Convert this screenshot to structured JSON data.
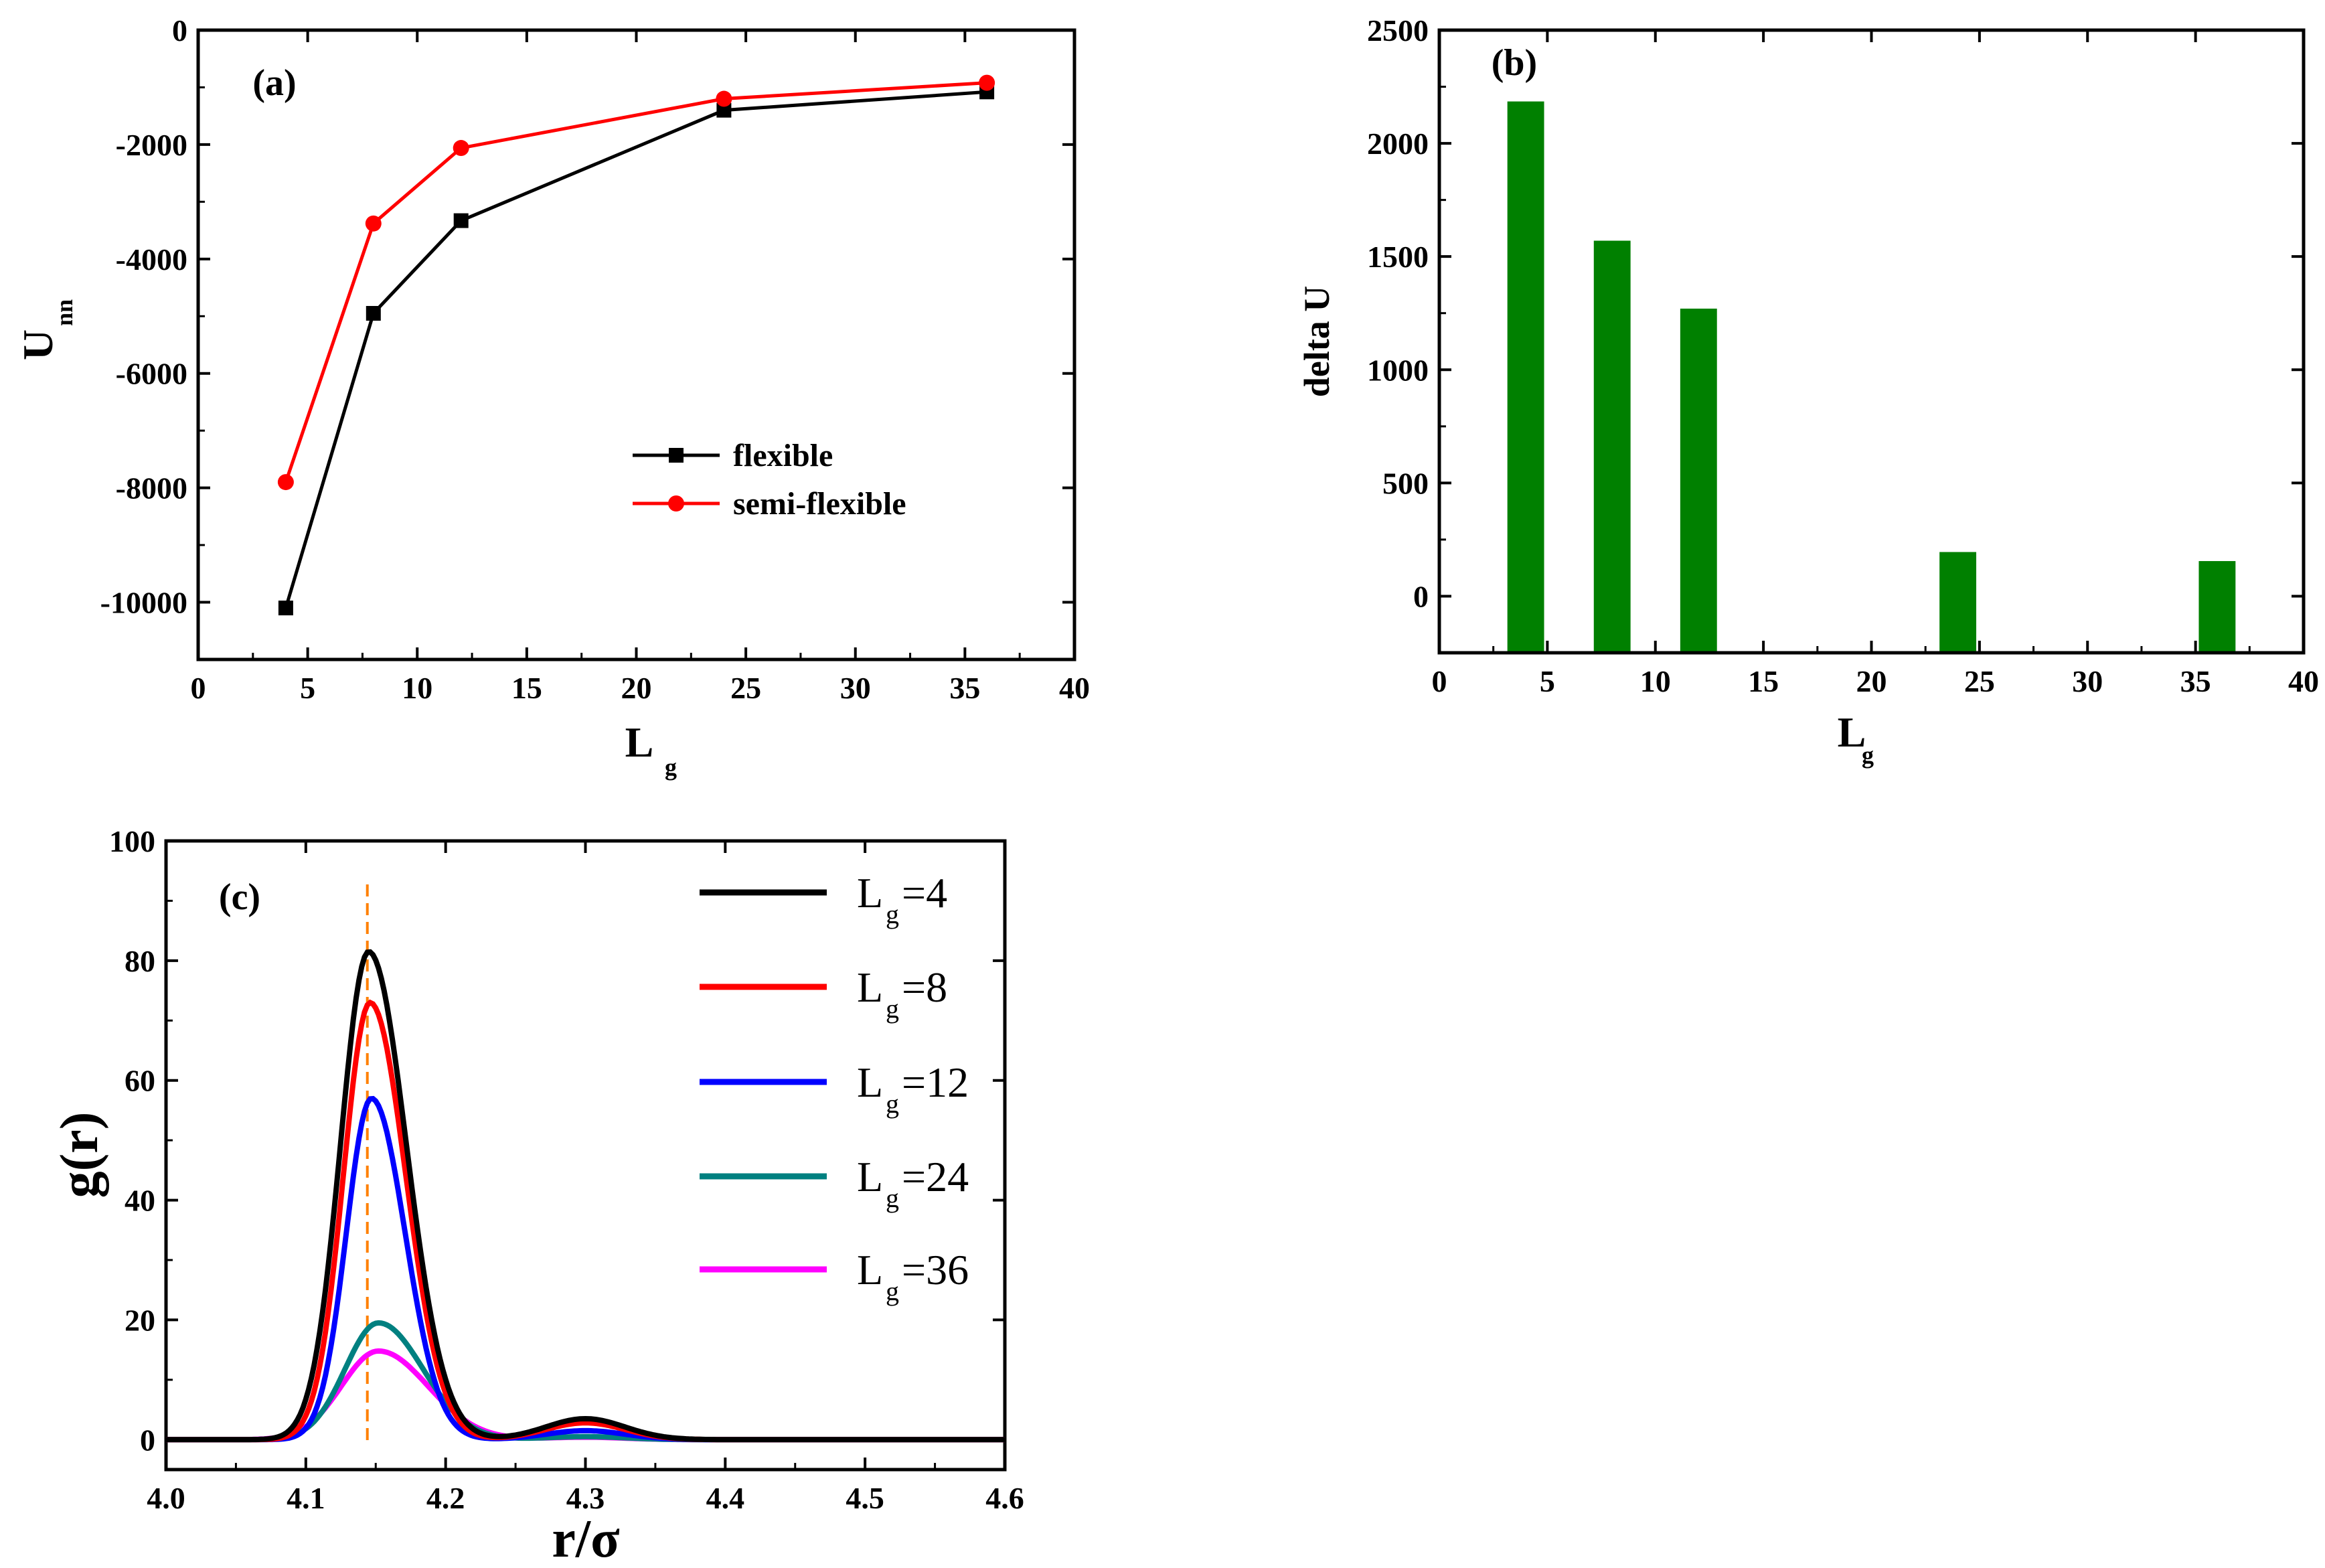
{
  "chart_data": [
    {
      "id": "a",
      "type": "line",
      "panel_label": "(a)",
      "xlabel": "L",
      "xlabel_sub": "g",
      "ylabel": "U",
      "ylabel_sub": "nn",
      "xlim": [
        0,
        40
      ],
      "ylim": [
        -11000,
        0
      ],
      "xticks": [
        0,
        5,
        10,
        15,
        20,
        25,
        30,
        35,
        40
      ],
      "yticks": [
        0,
        -2000,
        -4000,
        -6000,
        -8000,
        -10000
      ],
      "x": [
        4,
        8,
        12,
        24,
        36
      ],
      "series": [
        {
          "name": "flexible",
          "color": "#000000",
          "marker": "square",
          "values": [
            -10100,
            -4950,
            -3330,
            -1400,
            -1080
          ]
        },
        {
          "name": "semi-flexible",
          "color": "#ff0000",
          "marker": "circle",
          "values": [
            -7900,
            -3380,
            -2060,
            -1200,
            -920
          ]
        }
      ],
      "legend_position": "center-right"
    },
    {
      "id": "b",
      "type": "bar",
      "panel_label": "(b)",
      "xlabel": "L",
      "xlabel_sub": "g",
      "ylabel": "delta U",
      "xlim": [
        0,
        40
      ],
      "ylim": [
        -250,
        2500
      ],
      "xticks": [
        0,
        5,
        10,
        15,
        20,
        25,
        30,
        35,
        40
      ],
      "yticks": [
        0,
        500,
        1000,
        1500,
        2000,
        2500
      ],
      "categories": [
        4,
        8,
        12,
        24,
        36
      ],
      "values": [
        2185,
        1570,
        1270,
        195,
        155
      ],
      "bar_color": "#008000"
    },
    {
      "id": "c",
      "type": "line",
      "panel_label": "(c)",
      "xlabel": "r/σ",
      "ylabel": "g(r)",
      "xlim": [
        4.0,
        4.6
      ],
      "ylim": [
        -5,
        100
      ],
      "xticks": [
        4.0,
        4.1,
        4.2,
        4.3,
        4.4,
        4.5,
        4.6
      ],
      "yticks": [
        0,
        20,
        40,
        60,
        80,
        100
      ],
      "reference_line_x": 4.144,
      "reference_line_color": "#ff8000",
      "series": [
        {
          "legend_main": "L",
          "legend_sub": "g",
          "legend_value": "=4",
          "color": "#000000",
          "peak": 81.5,
          "center": 4.145,
          "width": 0.038,
          "tail": 3.5
        },
        {
          "legend_main": "L",
          "legend_sub": "g",
          "legend_value": "=8",
          "color": "#ff0000",
          "peak": 73.0,
          "center": 4.146,
          "width": 0.036,
          "tail": 2.8
        },
        {
          "legend_main": "L",
          "legend_sub": "g",
          "legend_value": "=12",
          "color": "#0000ff",
          "peak": 57.0,
          "center": 4.147,
          "width": 0.034,
          "tail": 1.5
        },
        {
          "legend_main": "L",
          "legend_sub": "g",
          "legend_value": "=24",
          "color": "#008080",
          "peak": 19.5,
          "center": 4.152,
          "width": 0.045,
          "tail": 0.5
        },
        {
          "legend_main": "L",
          "legend_sub": "g",
          "legend_value": "=36",
          "color": "#ff00ff",
          "peak": 14.8,
          "center": 4.152,
          "width": 0.05,
          "tail": 0.4
        }
      ],
      "legend_position": "top-right"
    }
  ]
}
